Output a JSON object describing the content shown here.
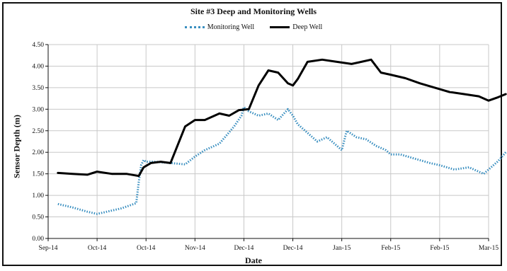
{
  "chart_data": {
    "type": "line",
    "title": "Site #3 Deep and Monitoring Wells",
    "xlabel": "Date",
    "ylabel": "Sensor Depth (m)",
    "ylim": [
      0,
      4.5
    ],
    "yticks": [
      "0.00",
      "0.50",
      "1.00",
      "1.50",
      "2.00",
      "2.50",
      "3.00",
      "3.50",
      "4.00",
      "4.50"
    ],
    "xticks": [
      "Sep-14",
      "Oct-14",
      "Oct-14",
      "Nov-14",
      "Dec-14",
      "Dec-14",
      "Jan-15",
      "Feb-15",
      "Feb-15",
      "Mar-15"
    ],
    "grid": true,
    "legend_position": "top-center",
    "series": [
      {
        "name": "Monitoring Well",
        "style": "dotted",
        "color": "#3a8fc0",
        "x": [
          0.2,
          0.5,
          0.8,
          1.0,
          1.2,
          1.5,
          1.8,
          1.85,
          1.9,
          1.95,
          2.0,
          2.2,
          2.5,
          2.8,
          3.0,
          3.2,
          3.5,
          3.8,
          3.95,
          4.0,
          4.1,
          4.3,
          4.5,
          4.7,
          4.9,
          5.0,
          5.1,
          5.3,
          5.5,
          5.7,
          5.9,
          6.0,
          6.1,
          6.3,
          6.5,
          6.7,
          6.9,
          7.0,
          7.2,
          7.5,
          7.8,
          8.0,
          8.3,
          8.6,
          8.9,
          9.0,
          9.2,
          9.35
        ],
        "values": [
          0.8,
          0.72,
          0.62,
          0.57,
          0.62,
          0.7,
          0.82,
          1.3,
          1.7,
          1.82,
          1.78,
          1.78,
          1.75,
          1.72,
          1.9,
          2.05,
          2.2,
          2.6,
          2.85,
          3.05,
          2.95,
          2.85,
          2.9,
          2.75,
          3.0,
          2.85,
          2.65,
          2.45,
          2.25,
          2.35,
          2.15,
          2.05,
          2.5,
          2.35,
          2.3,
          2.15,
          2.05,
          1.95,
          1.95,
          1.85,
          1.75,
          1.7,
          1.6,
          1.65,
          1.5,
          1.6,
          1.8,
          2.0
        ]
      },
      {
        "name": "Deep Well",
        "style": "solid",
        "color": "#000000",
        "x": [
          0.2,
          0.5,
          0.8,
          1.0,
          1.3,
          1.6,
          1.85,
          1.95,
          2.1,
          2.3,
          2.5,
          2.8,
          3.0,
          3.2,
          3.5,
          3.7,
          3.9,
          4.1,
          4.3,
          4.5,
          4.7,
          4.9,
          5.0,
          5.1,
          5.3,
          5.6,
          5.9,
          6.2,
          6.4,
          6.6,
          6.8,
          7.0,
          7.3,
          7.6,
          7.9,
          8.2,
          8.5,
          8.8,
          9.0,
          9.2,
          9.35
        ],
        "values": [
          1.52,
          1.5,
          1.48,
          1.55,
          1.5,
          1.5,
          1.45,
          1.65,
          1.75,
          1.78,
          1.75,
          2.6,
          2.75,
          2.75,
          2.9,
          2.85,
          2.98,
          3.0,
          3.55,
          3.9,
          3.85,
          3.6,
          3.55,
          3.7,
          4.1,
          4.15,
          4.1,
          4.05,
          4.1,
          4.15,
          3.85,
          3.8,
          3.72,
          3.6,
          3.5,
          3.4,
          3.35,
          3.3,
          3.2,
          3.28,
          3.35
        ]
      }
    ]
  }
}
